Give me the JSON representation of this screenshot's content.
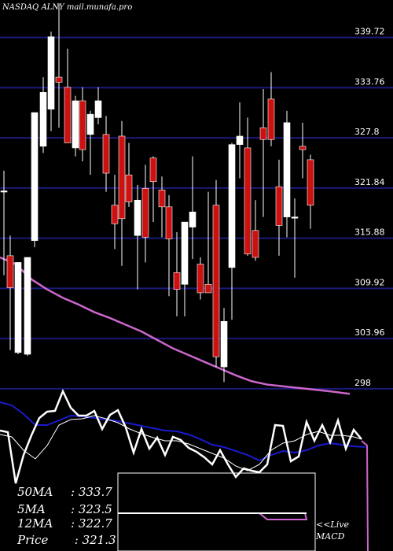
{
  "header": {
    "ticker_label": "NASDAQ ALNY mail.munafa.pro"
  },
  "colors": {
    "background": "#000000",
    "gridline": "#1a1a7a",
    "up_candle": "#ffffff",
    "down_candle": "#cc1111",
    "ma_long": "#cc66cc",
    "indicator_white": "#ffffff",
    "indicator_blue": "#1a1acc",
    "macd_box": "#ffffff",
    "macd_series": "#cc66cc"
  },
  "chart_data": {
    "type": "candlestick",
    "ylim": [
      295,
      343.7
    ],
    "y_ticks": [
      "339.72",
      "333.76",
      "327.8",
      "321.84",
      "315.88",
      "309.92",
      "303.96",
      "298"
    ],
    "candles": [
      {
        "x": 5,
        "o": 321.5,
        "h": 323.9,
        "l": 311.5,
        "c": 321.5
      },
      {
        "x": 13,
        "o": 313.8,
        "h": 316.2,
        "l": 302.6,
        "c": 310.0
      },
      {
        "x": 23,
        "o": 302.3,
        "h": 313.0,
        "l": 302.1,
        "c": 313.0
      },
      {
        "x": 35,
        "o": 302.1,
        "h": 313.6,
        "l": 301.9,
        "c": 313.6
      },
      {
        "x": 44,
        "o": 315.6,
        "h": 330.8,
        "l": 314.8,
        "c": 330.8
      },
      {
        "x": 55,
        "o": 326.8,
        "h": 335.0,
        "l": 326.0,
        "c": 333.2
      },
      {
        "x": 65,
        "o": 331.2,
        "h": 340.4,
        "l": 328.6,
        "c": 339.8
      },
      {
        "x": 75,
        "o": 335.0,
        "h": 343.7,
        "l": 329.0,
        "c": 334.4
      },
      {
        "x": 86,
        "o": 333.8,
        "h": 338.4,
        "l": 327.6,
        "c": 327.2
      },
      {
        "x": 96,
        "o": 326.6,
        "h": 332.8,
        "l": 325.6,
        "c": 332.2
      },
      {
        "x": 105,
        "o": 332.2,
        "h": 333.8,
        "l": 325.0,
        "c": 326.4
      },
      {
        "x": 115,
        "o": 328.2,
        "h": 331.0,
        "l": 323.4,
        "c": 330.6
      },
      {
        "x": 125,
        "o": 330.2,
        "h": 333.8,
        "l": 329.4,
        "c": 332.2
      },
      {
        "x": 135,
        "o": 328.2,
        "h": 330.4,
        "l": 321.4,
        "c": 323.6
      },
      {
        "x": 146,
        "o": 319.8,
        "h": 323.4,
        "l": 314.6,
        "c": 317.6
      },
      {
        "x": 155,
        "o": 328.0,
        "h": 329.8,
        "l": 312.6,
        "c": 318.2
      },
      {
        "x": 164,
        "o": 323.4,
        "h": 327.2,
        "l": 319.6,
        "c": 320.2
      },
      {
        "x": 175,
        "o": 316.2,
        "h": 322.2,
        "l": 309.8,
        "c": 320.4
      },
      {
        "x": 185,
        "o": 321.8,
        "h": 324.6,
        "l": 313.0,
        "c": 316.0
      },
      {
        "x": 195,
        "o": 325.4,
        "h": 325.6,
        "l": 317.8,
        "c": 322.6
      },
      {
        "x": 206,
        "o": 321.6,
        "h": 323.2,
        "l": 316.0,
        "c": 319.6
      },
      {
        "x": 215,
        "o": 319.6,
        "h": 321.0,
        "l": 309.0,
        "c": 315.8
      },
      {
        "x": 225,
        "o": 311.8,
        "h": 316.6,
        "l": 306.6,
        "c": 309.8
      },
      {
        "x": 235,
        "o": 310.4,
        "h": 317.8,
        "l": 306.6,
        "c": 317.8
      },
      {
        "x": 245,
        "o": 317.2,
        "h": 325.6,
        "l": 313.4,
        "c": 319.0
      },
      {
        "x": 255,
        "o": 312.8,
        "h": 313.6,
        "l": 308.6,
        "c": 309.4
      },
      {
        "x": 265,
        "o": 310.4,
        "h": 321.4,
        "l": 309.4,
        "c": 309.4
      },
      {
        "x": 275,
        "o": 319.8,
        "h": 322.8,
        "l": 300.6,
        "c": 301.8
      },
      {
        "x": 285,
        "o": 300.6,
        "h": 307.6,
        "l": 298.8,
        "c": 306.0
      },
      {
        "x": 295,
        "o": 312.4,
        "h": 327.2,
        "l": 306.2,
        "c": 327.0
      },
      {
        "x": 305,
        "o": 327.0,
        "h": 332.0,
        "l": 323.0,
        "c": 328.0
      },
      {
        "x": 315,
        "o": 326.6,
        "h": 330.2,
        "l": 313.8,
        "c": 314.0
      },
      {
        "x": 325,
        "o": 316.8,
        "h": 320.4,
        "l": 313.2,
        "c": 313.6
      },
      {
        "x": 335,
        "o": 329.0,
        "h": 333.6,
        "l": 318.4,
        "c": 327.6
      },
      {
        "x": 345,
        "o": 332.4,
        "h": 335.6,
        "l": 326.8,
        "c": 327.6
      },
      {
        "x": 355,
        "o": 322.0,
        "h": 325.2,
        "l": 313.8,
        "c": 317.4
      },
      {
        "x": 365,
        "o": 318.4,
        "h": 331.0,
        "l": 316.0,
        "c": 329.6
      },
      {
        "x": 375,
        "o": 318.4,
        "h": 320.6,
        "l": 311.2,
        "c": 318.4
      },
      {
        "x": 385,
        "o": 326.8,
        "h": 329.6,
        "l": 323.0,
        "c": 326.4
      },
      {
        "x": 395,
        "o": 325.2,
        "h": 325.8,
        "l": 317.0,
        "c": 319.8
      }
    ],
    "ma_long": [
      [
        0,
        313.6
      ],
      [
        20,
        312.8
      ],
      [
        40,
        311.0
      ],
      [
        60,
        309.8
      ],
      [
        80,
        308.8
      ],
      [
        100,
        308.0
      ],
      [
        120,
        307.1
      ],
      [
        140,
        306.4
      ],
      [
        160,
        305.6
      ],
      [
        180,
        304.8
      ],
      [
        200,
        303.8
      ],
      [
        220,
        302.8
      ],
      [
        240,
        302.0
      ],
      [
        260,
        301.2
      ],
      [
        280,
        300.4
      ],
      [
        300,
        299.6
      ],
      [
        320,
        298.9
      ],
      [
        340,
        298.5
      ],
      [
        360,
        298.3
      ],
      [
        380,
        298.1
      ],
      [
        400,
        297.9
      ],
      [
        420,
        297.7
      ],
      [
        445,
        297.4
      ]
    ],
    "indicator_white_1": [
      [
        0,
        547
      ],
      [
        10,
        549
      ],
      [
        20,
        614
      ],
      [
        30,
        578
      ],
      [
        40,
        553
      ],
      [
        50,
        531
      ],
      [
        60,
        523
      ],
      [
        70,
        522
      ],
      [
        80,
        497
      ],
      [
        90,
        518
      ],
      [
        100,
        528
      ],
      [
        110,
        528
      ],
      [
        120,
        522
      ],
      [
        130,
        545
      ],
      [
        140,
        527
      ],
      [
        150,
        521
      ],
      [
        160,
        543
      ],
      [
        170,
        575
      ],
      [
        180,
        545
      ],
      [
        190,
        570
      ],
      [
        200,
        556
      ],
      [
        210,
        578
      ],
      [
        220,
        555
      ],
      [
        230,
        559
      ],
      [
        240,
        569
      ],
      [
        250,
        574
      ],
      [
        260,
        581
      ],
      [
        270,
        590
      ],
      [
        280,
        572
      ],
      [
        290,
        590
      ],
      [
        300,
        606
      ],
      [
        310,
        595
      ],
      [
        320,
        598
      ],
      [
        330,
        600
      ],
      [
        340,
        590
      ],
      [
        350,
        540
      ],
      [
        360,
        541
      ],
      [
        370,
        586
      ],
      [
        380,
        580
      ],
      [
        390,
        536
      ],
      [
        400,
        560
      ],
      [
        410,
        540
      ],
      [
        420,
        562
      ],
      [
        430,
        534
      ],
      [
        440,
        570
      ],
      [
        450,
        546
      ],
      [
        460,
        558
      ]
    ],
    "indicator_white_2": [
      [
        0,
        552
      ],
      [
        15,
        555
      ],
      [
        30,
        572
      ],
      [
        45,
        583
      ],
      [
        60,
        566
      ],
      [
        75,
        540
      ],
      [
        90,
        533
      ],
      [
        105,
        532
      ],
      [
        120,
        528
      ],
      [
        135,
        532
      ],
      [
        150,
        537
      ],
      [
        165,
        545
      ],
      [
        180,
        551
      ],
      [
        195,
        556
      ],
      [
        210,
        560
      ],
      [
        225,
        560
      ],
      [
        240,
        564
      ],
      [
        255,
        570
      ],
      [
        270,
        576
      ],
      [
        285,
        582
      ],
      [
        300,
        592
      ],
      [
        315,
        598
      ],
      [
        330,
        590
      ],
      [
        345,
        572
      ],
      [
        360,
        563
      ],
      [
        375,
        560
      ],
      [
        390,
        552
      ],
      [
        405,
        548
      ],
      [
        420,
        553
      ],
      [
        435,
        553
      ],
      [
        450,
        555
      ],
      [
        460,
        558
      ]
    ],
    "indicator_blue": [
      [
        0,
        511
      ],
      [
        15,
        515
      ],
      [
        30,
        526
      ],
      [
        45,
        540
      ],
      [
        60,
        540
      ],
      [
        75,
        534
      ],
      [
        90,
        528
      ],
      [
        105,
        529
      ],
      [
        120,
        531
      ],
      [
        135,
        533
      ],
      [
        150,
        535
      ],
      [
        165,
        538
      ],
      [
        180,
        541
      ],
      [
        195,
        544
      ],
      [
        210,
        547
      ],
      [
        225,
        548
      ],
      [
        240,
        552
      ],
      [
        255,
        558
      ],
      [
        270,
        565
      ],
      [
        285,
        568
      ],
      [
        300,
        573
      ],
      [
        315,
        578
      ],
      [
        330,
        585
      ],
      [
        345,
        578
      ],
      [
        360,
        573
      ],
      [
        375,
        575
      ],
      [
        390,
        572
      ],
      [
        405,
        566
      ],
      [
        420,
        563
      ],
      [
        435,
        565
      ],
      [
        450,
        567
      ],
      [
        465,
        568
      ]
    ],
    "indicator_drop": [
      [
        460,
        560
      ],
      [
        467,
        566
      ],
      [
        468,
        700
      ]
    ],
    "macd_series": [
      [
        330,
        652
      ],
      [
        340,
        660
      ],
      [
        390,
        660
      ],
      [
        388,
        652
      ]
    ],
    "macd_box_top_label": ""
  },
  "moving_averages": [
    {
      "label": "50MA",
      "value": ": 333.7"
    },
    {
      "label": "5MA",
      "value": ": 323.5"
    },
    {
      "label": "12MA",
      "value": ": 322.7"
    },
    {
      "label": "Price",
      "value": "  : 321.3"
    }
  ],
  "macd_label": {
    "line1": "<<Live",
    "line2": "MACD"
  }
}
